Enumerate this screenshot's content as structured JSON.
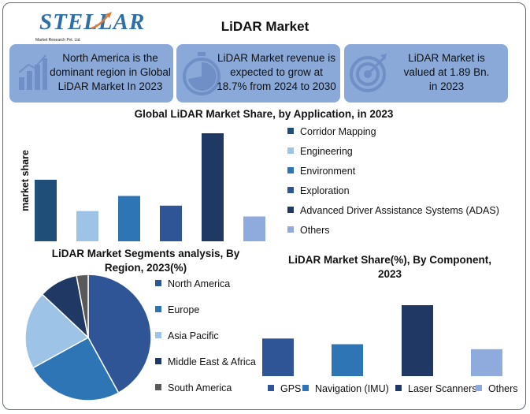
{
  "header": {
    "logo_text": "STELLAR",
    "logo_tagline": "Market Research Pvt. Ltd.",
    "title": "LiDAR Market"
  },
  "cards": [
    {
      "icon": "bar-growth-icon",
      "lines": [
        "North America is the",
        "dominant region in Global",
        "LiDAR Market In 2023"
      ]
    },
    {
      "icon": "stopwatch-icon",
      "lines": [
        "LiDAR Market revenue is",
        "expected to grow at",
        "18.7% from 2024 to 2030"
      ]
    },
    {
      "icon": "target-icon",
      "lines": [
        "LiDAR Market is",
        "valued at 1.89 Bn.",
        "in 2023"
      ]
    }
  ],
  "colors": {
    "card_bg": "#8aa9d8",
    "icon_fill": "#6f8fc6",
    "logo_blue": "#2f6fa7"
  },
  "chart_data": [
    {
      "type": "bar",
      "title": "Global LiDAR Market Share, by Application, in 2023",
      "ylabel": "market share",
      "categories": [
        "Corridor Mapping",
        "Engineering",
        "Environment",
        "Exploration",
        "Advanced Driver Assistance Systems (ADAS)",
        "Others"
      ],
      "values": [
        57,
        28,
        42,
        33,
        100,
        23
      ],
      "ylim": [
        0,
        100
      ],
      "colors": [
        "#1f4e79",
        "#9dc3e6",
        "#2e75b6",
        "#2f5597",
        "#1f3864",
        "#8faadc"
      ],
      "legend_position": "right",
      "grid": false
    },
    {
      "type": "pie",
      "title": "LiDAR Market Segments analysis, By Region, 2023(%)",
      "categories": [
        "North America",
        "Europe",
        "Asia Pacific",
        "Middle East & Africa",
        "South America"
      ],
      "values": [
        42,
        25,
        20,
        10,
        3
      ],
      "colors": [
        "#2f5597",
        "#2e75b6",
        "#9dc3e6",
        "#1f3864",
        "#595959"
      ],
      "legend_position": "right"
    },
    {
      "type": "bar",
      "title": "LiDAR Market Share(%), By Component, 2023",
      "categories": [
        "GPS",
        "Navigation (IMU)",
        "Laser Scanners",
        "Others"
      ],
      "values": [
        53,
        45,
        100,
        38
      ],
      "ylim": [
        0,
        100
      ],
      "colors": [
        "#2f5597",
        "#2e75b6",
        "#1f3864",
        "#8faadc"
      ],
      "legend_position": "bottom",
      "grid": false
    }
  ]
}
